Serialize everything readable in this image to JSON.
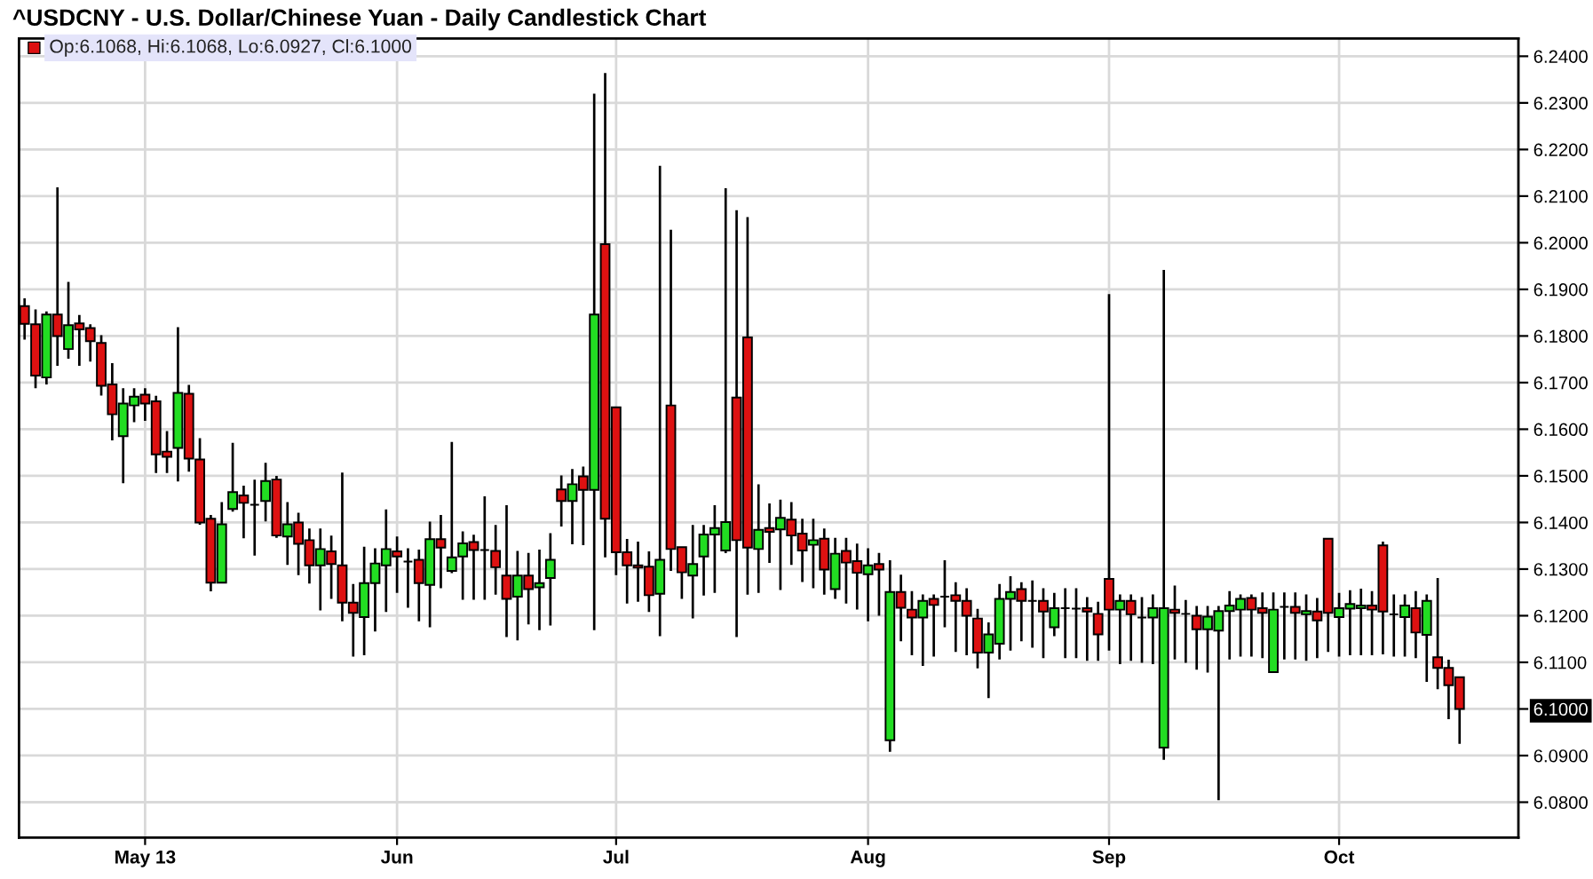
{
  "chart_data": {
    "type": "candlestick",
    "title": "^USDCNY - U.S. Dollar/Chinese Yuan - Daily Candlestick Chart",
    "annotations": [
      "Op:6.1068, Hi:6.1068, Lo:6.0927, Cl:6.1000"
    ],
    "categories": [
      null,
      null,
      null,
      null,
      null,
      null,
      null,
      null,
      null,
      null,
      null,
      "May 13",
      null,
      null,
      null,
      null,
      null,
      null,
      null,
      null,
      null,
      null,
      null,
      null,
      null,
      null,
      null,
      null,
      null,
      null,
      null,
      null,
      null,
      null,
      "Jun",
      null,
      null,
      null,
      null,
      null,
      null,
      null,
      null,
      null,
      null,
      null,
      null,
      null,
      null,
      null,
      null,
      null,
      null,
      null,
      "Jul",
      null,
      null,
      null,
      null,
      null,
      null,
      null,
      null,
      null,
      null,
      null,
      null,
      null,
      null,
      null,
      null,
      null,
      null,
      null,
      null,
      null,
      null,
      "Aug",
      null,
      null,
      null,
      null,
      null,
      null,
      null,
      null,
      null,
      null,
      null,
      null,
      null,
      null,
      null,
      null,
      null,
      null,
      null,
      null,
      null,
      "Sep",
      null,
      null,
      null,
      null,
      null,
      null,
      null,
      null,
      null,
      null,
      null,
      null,
      null,
      null,
      null,
      null,
      null,
      null,
      null,
      null,
      "Oct",
      null,
      null,
      null,
      null,
      null,
      null,
      null,
      null,
      null,
      null,
      null
    ],
    "ohlc": [
      [
        6.1864,
        6.1879,
        6.1794,
        6.1826
      ],
      [
        6.1825,
        6.1855,
        6.169,
        6.1715
      ],
      [
        6.1711,
        6.1851,
        6.1698,
        6.1846
      ],
      [
        6.1846,
        6.2117,
        6.1738,
        6.18
      ],
      [
        6.1772,
        6.1914,
        6.1753,
        6.1823
      ],
      [
        6.1827,
        6.1843,
        6.1738,
        6.1814
      ],
      [
        6.1817,
        6.1823,
        6.1747,
        6.1789
      ],
      [
        6.1785,
        6.18,
        6.1674,
        6.1693
      ],
      [
        6.1696,
        6.174,
        6.1578,
        6.1632
      ],
      [
        6.1585,
        6.1686,
        6.1486,
        6.1655
      ],
      [
        6.1651,
        6.1686,
        6.1617,
        6.167
      ],
      [
        6.1674,
        6.1686,
        6.162,
        6.1655
      ],
      [
        6.166,
        6.167,
        6.1508,
        6.1546
      ],
      [
        6.1552,
        6.1594,
        6.1508,
        6.1541
      ],
      [
        6.156,
        6.1817,
        6.149,
        6.1678
      ],
      [
        6.1676,
        6.1693,
        6.1511,
        6.1537
      ],
      [
        6.1535,
        6.1579,
        6.1397,
        6.14
      ],
      [
        6.1408,
        6.1414,
        6.1254,
        6.1271
      ],
      [
        6.1271,
        6.1442,
        6.1271,
        6.1396
      ],
      [
        6.1429,
        6.1569,
        6.1425,
        6.1465
      ],
      [
        6.1458,
        6.1477,
        6.1368,
        6.1442
      ],
      [
        6.1438,
        6.149,
        6.1331,
        6.1438
      ],
      [
        6.1446,
        6.1526,
        6.1404,
        6.1489
      ],
      [
        6.1492,
        6.1498,
        6.1369,
        6.1372
      ],
      [
        6.137,
        6.1442,
        6.1311,
        6.1396
      ],
      [
        6.14,
        6.1419,
        6.1289,
        6.1354
      ],
      [
        6.1362,
        6.1385,
        6.1271,
        6.1308
      ],
      [
        6.1308,
        6.1385,
        6.1213,
        6.1343
      ],
      [
        6.1338,
        6.137,
        6.1238,
        6.1311
      ],
      [
        6.1308,
        6.1505,
        6.119,
        6.1228
      ],
      [
        6.1228,
        6.1266,
        6.1114,
        6.1206
      ],
      [
        6.1197,
        6.1346,
        6.1117,
        6.127
      ],
      [
        6.127,
        6.1343,
        6.1168,
        6.1312
      ],
      [
        6.1308,
        6.1426,
        6.121,
        6.1343
      ],
      [
        6.1338,
        6.1368,
        6.1251,
        6.1327
      ],
      [
        6.1316,
        6.1343,
        6.1219,
        6.1316
      ],
      [
        6.132,
        6.134,
        6.119,
        6.127
      ],
      [
        6.1266,
        6.14,
        6.1177,
        6.1364
      ],
      [
        6.1364,
        6.1414,
        6.1261,
        6.1346
      ],
      [
        6.1296,
        6.1571,
        6.1293,
        6.1325
      ],
      [
        6.1327,
        6.1379,
        6.1236,
        6.1355
      ],
      [
        6.1358,
        6.1372,
        6.1236,
        6.1341
      ],
      [
        6.1341,
        6.1454,
        6.1236,
        6.1341
      ],
      [
        6.1339,
        6.1393,
        6.1247,
        6.1304
      ],
      [
        6.1286,
        6.1435,
        6.1156,
        6.1236
      ],
      [
        6.1241,
        6.1337,
        6.1149,
        6.1286
      ],
      [
        6.1286,
        6.1333,
        6.1183,
        6.1257
      ],
      [
        6.1261,
        6.134,
        6.1171,
        6.127
      ],
      [
        6.1281,
        6.1375,
        6.1181,
        6.132
      ],
      [
        6.1471,
        6.1499,
        6.1393,
        6.1446
      ],
      [
        6.1446,
        6.1513,
        6.1355,
        6.1482
      ],
      [
        6.1499,
        6.1518,
        6.1353,
        6.147
      ],
      [
        6.147,
        6.2318,
        6.1171,
        6.1846
      ],
      [
        6.1997,
        6.2362,
        6.1327,
        6.1408
      ],
      [
        6.1647,
        6.1647,
        6.1289,
        6.1336
      ],
      [
        6.1336,
        6.1363,
        6.1228,
        6.1308
      ],
      [
        6.1308,
        6.1357,
        6.1232,
        6.1303
      ],
      [
        6.1305,
        6.1336,
        6.121,
        6.1244
      ],
      [
        6.1247,
        6.2163,
        6.1158,
        6.132
      ],
      [
        6.1651,
        6.2026,
        6.1298,
        6.1343
      ],
      [
        6.1347,
        6.1347,
        6.1238,
        6.1293
      ],
      [
        6.1286,
        6.1393,
        6.1196,
        6.1311
      ],
      [
        6.1327,
        6.1393,
        6.1245,
        6.1374
      ],
      [
        6.1374,
        6.1435,
        6.1251,
        6.1388
      ],
      [
        6.134,
        6.2115,
        6.1336,
        6.1401
      ],
      [
        6.1668,
        6.2068,
        6.1156,
        6.1362
      ],
      [
        6.1797,
        6.2053,
        6.1247,
        6.1346
      ],
      [
        6.1343,
        6.148,
        6.1251,
        6.1384
      ],
      [
        6.1388,
        6.1439,
        6.1315,
        6.138
      ],
      [
        6.1385,
        6.1447,
        6.1257,
        6.141
      ],
      [
        6.1406,
        6.1442,
        6.1311,
        6.1372
      ],
      [
        6.1376,
        6.1406,
        6.1274,
        6.134
      ],
      [
        6.1352,
        6.1406,
        6.1261,
        6.1362
      ],
      [
        6.1365,
        6.1385,
        6.1247,
        6.1299
      ],
      [
        6.1257,
        6.1365,
        6.1238,
        6.1333
      ],
      [
        6.1339,
        6.1365,
        6.1228,
        6.1314
      ],
      [
        6.1317,
        6.1353,
        6.1215,
        6.1292
      ],
      [
        6.1289,
        6.1343,
        6.119,
        6.1308
      ],
      [
        6.1311,
        6.1333,
        6.1202,
        6.1299
      ],
      [
        6.0933,
        6.1317,
        6.091,
        6.1251
      ],
      [
        6.1251,
        6.1286,
        6.1147,
        6.1217
      ],
      [
        6.1213,
        6.1251,
        6.1117,
        6.1196
      ],
      [
        6.1196,
        6.1244,
        6.1094,
        6.1232
      ],
      [
        6.1236,
        6.1244,
        6.1114,
        6.1223
      ],
      [
        6.1241,
        6.1317,
        6.1177,
        6.1241
      ],
      [
        6.1244,
        6.127,
        6.1124,
        6.1232
      ],
      [
        6.1232,
        6.1257,
        6.1117,
        6.12
      ],
      [
        6.1194,
        6.1213,
        6.1089,
        6.1121
      ],
      [
        6.1121,
        6.1184,
        6.1025,
        6.116
      ],
      [
        6.114,
        6.1266,
        6.1108,
        6.1236
      ],
      [
        6.1236,
        6.1283,
        6.1127,
        6.1251
      ],
      [
        6.1257,
        6.127,
        6.1147,
        6.1232
      ],
      [
        6.1232,
        6.1274,
        6.1133,
        6.1232
      ],
      [
        6.1232,
        6.1257,
        6.1111,
        6.1209
      ],
      [
        6.1175,
        6.1247,
        6.1158,
        6.1216
      ],
      [
        6.1216,
        6.1257,
        6.1111,
        6.1216
      ],
      [
        6.1215,
        6.1257,
        6.1111,
        6.1215
      ],
      [
        6.1216,
        6.1238,
        6.1105,
        6.1209
      ],
      [
        6.1204,
        6.1228,
        6.1105,
        6.116
      ],
      [
        6.1279,
        6.1888,
        6.1127,
        6.1213
      ],
      [
        6.1213,
        6.1244,
        6.1098,
        6.1232
      ],
      [
        6.1232,
        6.1244,
        6.1105,
        6.1203
      ],
      [
        6.1196,
        6.1238,
        6.1101,
        6.1196
      ],
      [
        6.1196,
        6.1244,
        6.1098,
        6.1216
      ],
      [
        6.0917,
        6.194,
        6.0893,
        6.1216
      ],
      [
        6.1213,
        6.1263,
        6.1108,
        6.1206
      ],
      [
        6.1204,
        6.1232,
        6.1101,
        6.1204
      ],
      [
        6.12,
        6.1219,
        6.1086,
        6.1171
      ],
      [
        6.1171,
        6.1219,
        6.108,
        6.1198
      ],
      [
        6.1168,
        6.1219,
        6.0806,
        6.121
      ],
      [
        6.121,
        6.1251,
        6.1108,
        6.1222
      ],
      [
        6.1213,
        6.1244,
        6.1114,
        6.1236
      ],
      [
        6.1238,
        6.1244,
        6.1114,
        6.1213
      ],
      [
        6.1216,
        6.1248,
        6.1111,
        6.1206
      ],
      [
        6.1079,
        6.1248,
        6.1079,
        6.1213
      ],
      [
        6.1219,
        6.1248,
        6.1108,
        6.1219
      ],
      [
        6.1219,
        6.1248,
        6.1108,
        6.1206
      ],
      [
        6.1203,
        6.1244,
        6.1105,
        6.121
      ],
      [
        6.1209,
        6.1236,
        6.1111,
        6.119
      ],
      [
        6.1365,
        6.1365,
        6.1124,
        6.1206
      ],
      [
        6.1197,
        6.1247,
        6.1114,
        6.1216
      ],
      [
        6.1215,
        6.1253,
        6.1117,
        6.1225
      ],
      [
        6.1216,
        6.1256,
        6.1117,
        6.1222
      ],
      [
        6.1222,
        6.1251,
        6.1117,
        6.1213
      ],
      [
        6.1351,
        6.1357,
        6.1119,
        6.1209
      ],
      [
        6.1203,
        6.1244,
        6.1114,
        6.1203
      ],
      [
        6.1197,
        6.1244,
        6.1114,
        6.1222
      ],
      [
        6.1216,
        6.1251,
        6.1111,
        6.1164
      ],
      [
        6.1159,
        6.1244,
        6.106,
        6.1232
      ],
      [
        6.1111,
        6.1279,
        6.1044,
        6.1088
      ],
      [
        6.1088,
        6.1104,
        6.098,
        6.1051
      ],
      [
        6.1068,
        6.1068,
        6.0927,
        6.1
      ]
    ],
    "colors": [
      "#dd1111",
      "#dd1111",
      "#22dd22",
      "#dd1111",
      "#22dd22",
      "#dd1111",
      "#dd1111",
      "#dd1111",
      "#dd1111",
      "#22dd22",
      "#22dd22",
      "#dd1111",
      "#dd1111",
      "#dd1111",
      "#22dd22",
      "#dd1111",
      "#dd1111",
      "#dd1111",
      "#22dd22",
      "#22dd22",
      "#dd1111",
      "#000000",
      "#22dd22",
      "#dd1111",
      "#22dd22",
      "#dd1111",
      "#dd1111",
      "#22dd22",
      "#dd1111",
      "#dd1111",
      "#dd1111",
      "#22dd22",
      "#22dd22",
      "#22dd22",
      "#dd1111",
      "#000000",
      "#dd1111",
      "#22dd22",
      "#dd1111",
      "#22dd22",
      "#22dd22",
      "#dd1111",
      "#000000",
      "#dd1111",
      "#dd1111",
      "#22dd22",
      "#dd1111",
      "#22dd22",
      "#22dd22",
      "#dd1111",
      "#22dd22",
      "#dd1111",
      "#22dd22",
      "#dd1111",
      "#dd1111",
      "#dd1111",
      "#dd1111",
      "#dd1111",
      "#22dd22",
      "#dd1111",
      "#dd1111",
      "#22dd22",
      "#22dd22",
      "#22dd22",
      "#22dd22",
      "#dd1111",
      "#dd1111",
      "#22dd22",
      "#dd1111",
      "#22dd22",
      "#dd1111",
      "#dd1111",
      "#22dd22",
      "#dd1111",
      "#22dd22",
      "#dd1111",
      "#dd1111",
      "#22dd22",
      "#dd1111",
      "#22dd22",
      "#dd1111",
      "#dd1111",
      "#22dd22",
      "#dd1111",
      "#000000",
      "#dd1111",
      "#dd1111",
      "#dd1111",
      "#22dd22",
      "#22dd22",
      "#22dd22",
      "#dd1111",
      "#000000",
      "#dd1111",
      "#22dd22",
      "#000000",
      "#000000",
      "#dd1111",
      "#dd1111",
      "#dd1111",
      "#22dd22",
      "#dd1111",
      "#000000",
      "#22dd22",
      "#22dd22",
      "#dd1111",
      "#000000",
      "#dd1111",
      "#22dd22",
      "#22dd22",
      "#22dd22",
      "#22dd22",
      "#dd1111",
      "#dd1111",
      "#22dd22",
      "#000000",
      "#dd1111",
      "#22dd22",
      "#dd1111",
      "#dd1111",
      "#22dd22",
      "#22dd22",
      "#22dd22",
      "#dd1111",
      "#dd1111",
      "#000000",
      "#22dd22",
      "#dd1111",
      "#22dd22",
      "#dd1111",
      "#dd1111",
      "#dd1111"
    ],
    "ylim": [
      6.0724,
      6.2438
    ],
    "yticks": [
      {
        "value": 6.08,
        "label": "6.0800"
      },
      {
        "value": 6.09,
        "label": "6.0900"
      },
      {
        "value": 6.1,
        "label": "6.1000"
      },
      {
        "value": 6.11,
        "label": "6.1100"
      },
      {
        "value": 6.12,
        "label": "6.1200"
      },
      {
        "value": 6.13,
        "label": "6.1300"
      },
      {
        "value": 6.14,
        "label": "6.1400"
      },
      {
        "value": 6.15,
        "label": "6.1500"
      },
      {
        "value": 6.16,
        "label": "6.1600"
      },
      {
        "value": 6.17,
        "label": "6.1700"
      },
      {
        "value": 6.18,
        "label": "6.1800"
      },
      {
        "value": 6.19,
        "label": "6.1900"
      },
      {
        "value": 6.2,
        "label": "6.2000"
      },
      {
        "value": 6.21,
        "label": "6.2100"
      },
      {
        "value": 6.22,
        "label": "6.2200"
      },
      {
        "value": 6.23,
        "label": "6.2300"
      },
      {
        "value": 6.24,
        "label": "6.2400"
      }
    ],
    "grid": true
  }
}
